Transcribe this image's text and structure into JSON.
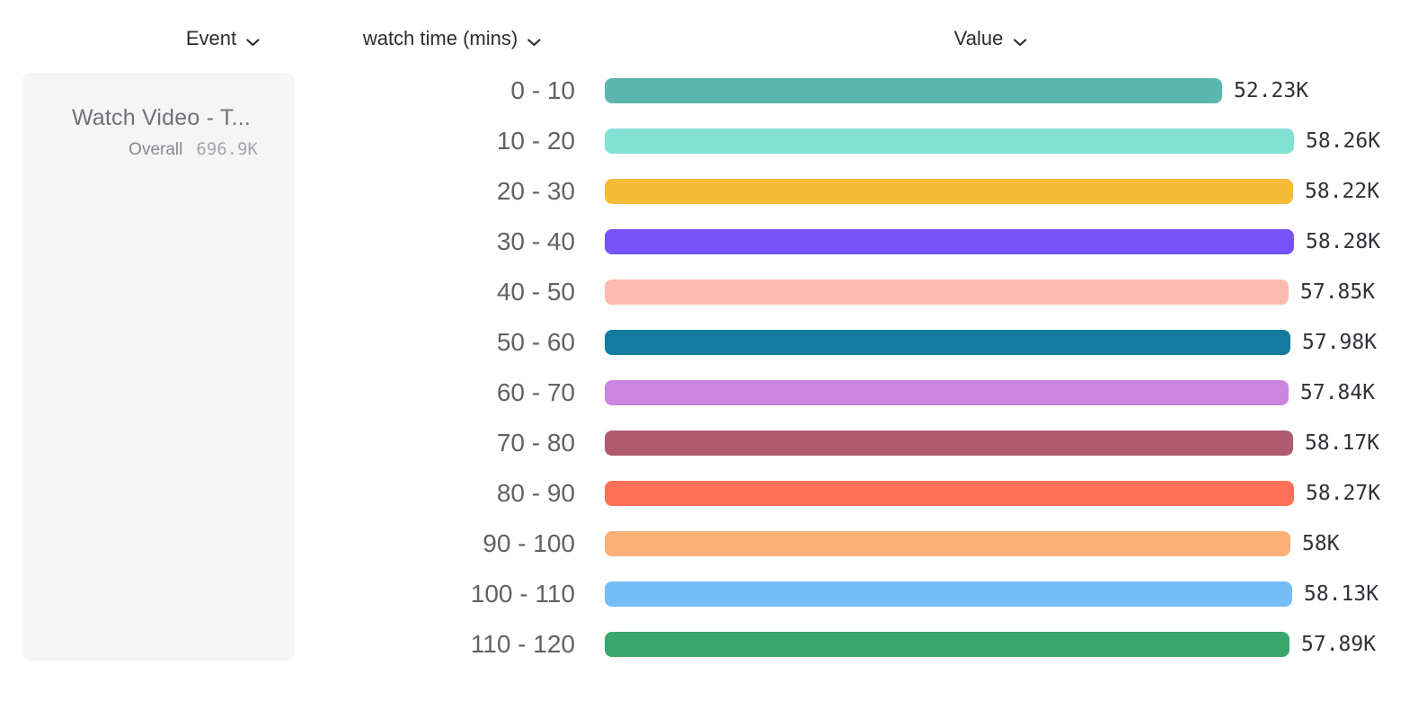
{
  "header": {
    "event": "Event",
    "breakdown": "watch time (mins)",
    "value": "Value"
  },
  "event_card": {
    "title": "Watch Video - T...",
    "overall_label": "Overall",
    "overall_value": "696.9K"
  },
  "chart_data": {
    "type": "bar",
    "orientation": "horizontal",
    "title": "",
    "xlabel": "",
    "ylabel": "watch time (mins)",
    "grid": false,
    "legend": false,
    "xlim": [
      0,
      58280
    ],
    "categories": [
      "0 - 10",
      "10 - 20",
      "20 - 30",
      "30 - 40",
      "40 - 50",
      "50 - 60",
      "60 - 70",
      "70 - 80",
      "80 - 90",
      "90 - 100",
      "100 - 110",
      "110 - 120"
    ],
    "values": [
      52230,
      58260,
      58220,
      58280,
      57850,
      57980,
      57840,
      58170,
      58270,
      58000,
      58130,
      57890
    ],
    "value_labels": [
      "52.23K",
      "58.26K",
      "58.22K",
      "58.28K",
      "57.85K",
      "57.98K",
      "57.84K",
      "58.17K",
      "58.27K",
      "58K",
      "58.13K",
      "57.89K"
    ],
    "colors": [
      "#5bb6b0",
      "#82e1d4",
      "#f7bb3a",
      "#7752f8",
      "#fcbab1",
      "#127b9e",
      "#cb84e0",
      "#b05a70",
      "#fe7057",
      "#fcb077",
      "#74bdf6",
      "#3ba76d"
    ]
  }
}
